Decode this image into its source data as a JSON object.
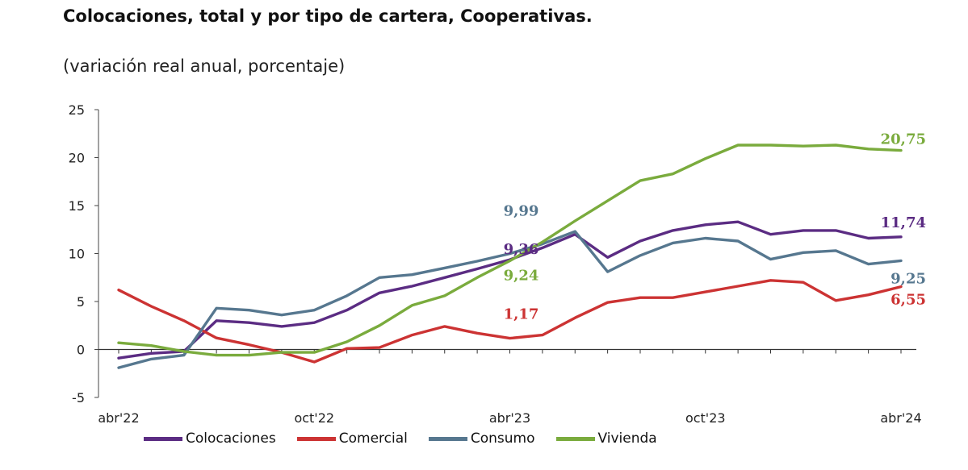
{
  "title": "Colocaciones, total y por tipo de cartera, Cooperativas.",
  "subtitle": "(variación real anual, porcentaje)",
  "chart_data": {
    "type": "line",
    "x": [
      "abr'22",
      "may'22",
      "jun'22",
      "jul'22",
      "ago'22",
      "sep'22",
      "oct'22",
      "nov'22",
      "dic'22",
      "ene'23",
      "feb'23",
      "mar'23",
      "abr'23",
      "may'23",
      "jun'23",
      "jul'23",
      "ago'23",
      "sep'23",
      "oct'23",
      "nov'23",
      "dic'23",
      "ene'24",
      "feb'24",
      "mar'24",
      "abr'24"
    ],
    "x_tick_labels": [
      "abr'22",
      "oct'22",
      "abr'23",
      "oct'23",
      "abr'24"
    ],
    "y_tick_labels": [
      "25",
      "20",
      "15",
      "10",
      "5",
      "0",
      "-5"
    ],
    "ylim": [
      -5,
      25
    ],
    "grid": false,
    "legend_position": "bottom",
    "series": [
      {
        "name": "Colocaciones",
        "color": "#5b2c83",
        "values": [
          -0.9,
          -0.4,
          -0.2,
          3.0,
          2.8,
          2.4,
          2.8,
          4.1,
          5.9,
          6.6,
          7.5,
          8.4,
          9.36,
          10.6,
          12.0,
          9.6,
          11.3,
          12.4,
          13.0,
          13.3,
          12.0,
          12.4,
          12.4,
          11.6,
          11.74
        ],
        "end_label": "11,74",
        "annotation": {
          "index": 12,
          "label": "9,36"
        }
      },
      {
        "name": "Comercial",
        "color": "#cc3333",
        "values": [
          6.2,
          4.5,
          3.0,
          1.2,
          0.5,
          -0.3,
          -1.3,
          0.1,
          0.2,
          1.5,
          2.4,
          1.7,
          1.17,
          1.5,
          3.3,
          4.9,
          5.4,
          5.4,
          6.0,
          6.6,
          7.2,
          7.0,
          5.1,
          5.7,
          6.55
        ],
        "end_label": "6,55",
        "annotation": {
          "index": 12,
          "label": "1,17"
        }
      },
      {
        "name": "Consumo",
        "color": "#56778f",
        "values": [
          -1.9,
          -1.0,
          -0.6,
          4.3,
          4.1,
          3.6,
          4.1,
          5.6,
          7.5,
          7.8,
          8.5,
          9.2,
          9.99,
          11.0,
          12.3,
          8.1,
          9.8,
          11.1,
          11.6,
          11.3,
          9.4,
          10.1,
          10.3,
          8.9,
          9.25
        ],
        "end_label": "9,25",
        "annotation": {
          "index": 12,
          "label": "9,99"
        }
      },
      {
        "name": "Vivienda",
        "color": "#7aab3d",
        "values": [
          0.7,
          0.4,
          -0.2,
          -0.6,
          -0.6,
          -0.3,
          -0.3,
          0.8,
          2.5,
          4.6,
          5.6,
          7.5,
          9.24,
          11.2,
          13.4,
          15.5,
          17.6,
          18.3,
          19.9,
          21.3,
          21.3,
          21.2,
          21.3,
          20.9,
          20.75
        ],
        "end_label": "20,75",
        "annotation": {
          "index": 12,
          "label": "9,24"
        }
      }
    ]
  }
}
